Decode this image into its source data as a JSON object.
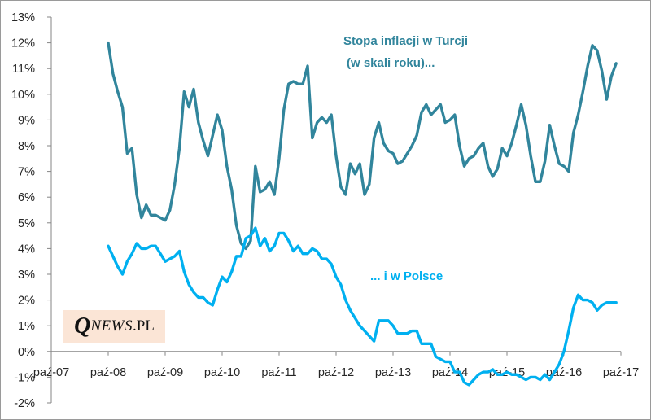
{
  "chart_data": {
    "type": "line",
    "title": "",
    "xlabel": "",
    "ylabel": "",
    "ylim": [
      -2,
      13
    ],
    "y_ticks": [
      -2,
      -1,
      0,
      1,
      2,
      3,
      4,
      5,
      6,
      7,
      8,
      9,
      10,
      11,
      12,
      13
    ],
    "y_tick_labels": [
      "-2%",
      "-1%",
      "0%",
      "1%",
      "2%",
      "3%",
      "4%",
      "5%",
      "6%",
      "7%",
      "8%",
      "9%",
      "10%",
      "11%",
      "12%",
      "13%"
    ],
    "x_start": "2007-10",
    "x_end": "2017-10",
    "x_tick_labels": [
      "paź-07",
      "paź-08",
      "paź-09",
      "paź-10",
      "paź-11",
      "paź-12",
      "paź-13",
      "paź-14",
      "paź-15",
      "paź-16",
      "paź-17"
    ],
    "gridlines": false,
    "series": [
      {
        "name": "Turcja",
        "color": "#31859c",
        "start": "2008-10",
        "values": [
          12.0,
          10.8,
          10.1,
          9.5,
          7.7,
          7.9,
          6.1,
          5.2,
          5.7,
          5.3,
          5.3,
          5.2,
          5.1,
          5.5,
          6.5,
          7.9,
          10.1,
          9.5,
          10.2,
          8.9,
          8.2,
          7.6,
          8.4,
          9.2,
          8.6,
          7.2,
          6.3,
          4.9,
          4.2,
          4.0,
          4.3,
          7.2,
          6.2,
          6.3,
          6.6,
          6.1,
          7.5,
          9.4,
          10.4,
          10.5,
          10.4,
          10.4,
          11.1,
          8.3,
          8.9,
          9.1,
          8.9,
          9.2,
          7.6,
          6.4,
          6.1,
          7.3,
          6.9,
          7.3,
          6.1,
          6.5,
          8.3,
          8.9,
          8.1,
          7.8,
          7.7,
          7.3,
          7.4,
          7.7,
          8.0,
          8.4,
          9.3,
          9.6,
          9.2,
          9.4,
          9.6,
          8.9,
          9.0,
          9.2,
          8.0,
          7.2,
          7.5,
          7.6,
          7.9,
          8.1,
          7.2,
          6.8,
          7.1,
          7.9,
          7.6,
          8.1,
          8.8,
          9.6,
          8.8,
          7.6,
          6.6,
          6.6,
          7.4,
          8.8,
          8.0,
          7.3,
          7.2,
          7.0,
          8.5,
          9.2,
          10.1,
          11.1,
          11.9,
          11.7,
          10.9,
          9.8,
          10.7,
          11.2
        ]
      },
      {
        "name": "Polska",
        "color": "#00b0f0",
        "start": "2008-10",
        "values": [
          4.1,
          3.7,
          3.3,
          3.0,
          3.5,
          3.8,
          4.2,
          4.0,
          4.0,
          4.1,
          4.1,
          3.8,
          3.5,
          3.6,
          3.7,
          3.9,
          3.1,
          2.6,
          2.3,
          2.1,
          2.1,
          1.9,
          1.8,
          2.4,
          2.9,
          2.7,
          3.1,
          3.7,
          3.7,
          4.4,
          4.5,
          4.8,
          4.1,
          4.4,
          3.9,
          4.1,
          4.6,
          4.6,
          4.3,
          3.9,
          4.1,
          3.8,
          3.8,
          4.0,
          3.9,
          3.6,
          3.6,
          3.4,
          2.9,
          2.6,
          2.0,
          1.6,
          1.3,
          1.0,
          0.8,
          0.6,
          0.4,
          1.2,
          1.2,
          1.2,
          1.0,
          0.7,
          0.7,
          0.7,
          0.8,
          0.8,
          0.3,
          0.3,
          0.3,
          -0.2,
          -0.3,
          -0.4,
          -0.4,
          -0.8,
          -0.8,
          -1.2,
          -1.3,
          -1.1,
          -0.9,
          -0.8,
          -0.8,
          -0.7,
          -0.9,
          -0.9,
          -0.8,
          -0.9,
          -0.9,
          -1.0,
          -1.1,
          -1.0,
          -1.0,
          -1.1,
          -0.9,
          -1.1,
          -0.8,
          -0.5,
          0.0,
          0.8,
          1.7,
          2.2,
          2.0,
          2.0,
          1.9,
          1.6,
          1.8,
          1.9,
          1.9,
          1.9
        ]
      }
    ],
    "annotations": {
      "turkey_line1": "Stopa inflacji  w Turcji",
      "turkey_line2": "(w skali roku)...",
      "poland": "... i w Polsce"
    }
  },
  "logo": {
    "q": "Q",
    "news": "NEWS",
    "pl": ".PL"
  }
}
